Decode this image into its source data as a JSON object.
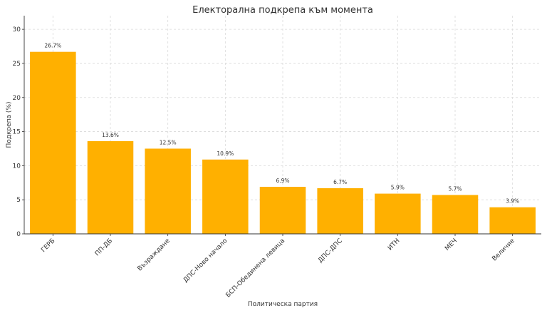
{
  "chart_data": {
    "type": "bar",
    "title": "Електорална подкрепа към момента",
    "xlabel": "Политическа партия",
    "ylabel": "Подкрепа (%)",
    "categories": [
      "ГЕРБ",
      "ПП-ДБ",
      "Възраждане",
      "ДПС-Ново начало",
      "БСП-Обединена левица",
      "ДПС-ДПС",
      "ИТН",
      "МЕЧ",
      "Величие"
    ],
    "values": [
      26.7,
      13.6,
      12.5,
      10.9,
      6.9,
      6.7,
      5.9,
      5.7,
      3.9
    ],
    "data_labels": [
      "26.7%",
      "13.6%",
      "12.5%",
      "10.9%",
      "6.9%",
      "6.7%",
      "5.9%",
      "5.7%",
      "3.9%"
    ],
    "ylim": [
      0,
      32
    ],
    "yticks": [
      0,
      5,
      10,
      15,
      20,
      25,
      30
    ],
    "grid": true,
    "bar_color": "#FFB000"
  }
}
